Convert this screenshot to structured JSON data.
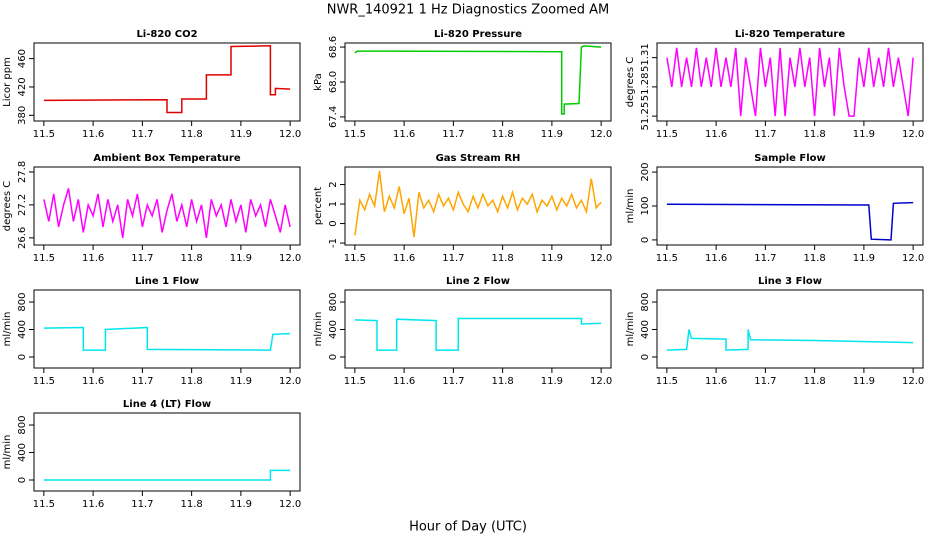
{
  "title": "NWR_140921  1 Hz Diagnostics Zoomed AM",
  "xlabel": "Hour of Day (UTC)",
  "chart_data": [
    {
      "type": "line",
      "title": "Li-820 CO2",
      "ylabel": "Licor ppm",
      "x": [
        11.5,
        11.75,
        11.75,
        11.78,
        11.78,
        11.83,
        11.83,
        11.88,
        11.88,
        11.96,
        11.96,
        11.97,
        11.97,
        12.0
      ],
      "series": [
        {
          "color": "#e00000",
          "values": [
            401,
            402,
            384,
            384,
            403,
            403,
            437,
            437,
            477,
            478,
            409,
            409,
            418,
            417
          ]
        }
      ],
      "xlim": [
        11.48,
        12.02
      ],
      "xticks": [
        11.5,
        11.6,
        11.7,
        11.8,
        11.9,
        {
          "value": 12,
          "label": "12.0"
        }
      ],
      "ylim": [
        372,
        482
      ],
      "yticks": [
        380,
        420,
        460
      ]
    },
    {
      "type": "line",
      "title": "Li-820 Pressure",
      "ylabel": "kPa",
      "x": [
        11.5,
        11.505,
        11.92,
        11.92,
        11.925,
        11.925,
        11.955,
        11.96,
        11.965,
        12.0
      ],
      "series": [
        {
          "color": "#00cc00",
          "values": [
            68.5,
            68.53,
            68.52,
            67.45,
            67.45,
            67.62,
            67.63,
            68.6,
            68.62,
            68.6
          ]
        }
      ],
      "xlim": [
        11.48,
        12.02
      ],
      "xticks": [
        11.5,
        11.6,
        11.7,
        11.8,
        11.9,
        {
          "value": 12,
          "label": "12.0"
        }
      ],
      "ylim": [
        67.33,
        68.67
      ],
      "yticks": [
        67.4,
        {
          "value": 68,
          "label": "68.0"
        },
        68.6
      ]
    },
    {
      "type": "line",
      "title": "Li-820 Temperature",
      "ylabel": "degrees C",
      "x": [
        11.5,
        11.51,
        11.52,
        11.53,
        11.54,
        11.55,
        11.56,
        11.57,
        11.58,
        11.59,
        11.6,
        11.61,
        11.62,
        11.63,
        11.64,
        11.65,
        11.66,
        11.67,
        11.68,
        11.69,
        11.7,
        11.71,
        11.72,
        11.73,
        11.74,
        11.75,
        11.76,
        11.77,
        11.78,
        11.79,
        11.8,
        11.81,
        11.82,
        11.83,
        11.84,
        11.85,
        11.86,
        11.87,
        11.88,
        11.89,
        11.9,
        11.91,
        11.92,
        11.93,
        11.94,
        11.95,
        11.96,
        11.97,
        11.98,
        11.99,
        12.0
      ],
      "series": [
        {
          "color": "#ff00ff",
          "values": [
            51.31,
            51.28,
            51.32,
            51.28,
            51.31,
            51.28,
            51.32,
            51.28,
            51.31,
            51.28,
            51.32,
            51.28,
            51.31,
            51.28,
            51.32,
            51.25,
            51.31,
            51.28,
            51.25,
            51.32,
            51.28,
            51.31,
            51.25,
            51.32,
            51.25,
            51.31,
            51.28,
            51.32,
            51.28,
            51.31,
            51.25,
            51.32,
            51.28,
            51.31,
            51.25,
            51.32,
            51.28,
            51.25,
            51.25,
            51.31,
            51.28,
            51.32,
            51.28,
            51.31,
            51.28,
            51.32,
            51.28,
            51.31,
            51.28,
            51.25,
            51.31
          ]
        }
      ],
      "xlim": [
        11.48,
        12.02
      ],
      "xticks": [
        11.5,
        11.6,
        11.7,
        11.8,
        11.9,
        {
          "value": 12,
          "label": "12.0"
        }
      ],
      "ylim": [
        51.245,
        51.325
      ],
      "yticks": [
        51.25,
        51.28,
        51.31
      ]
    },
    {
      "type": "line",
      "title": "Ambient Box Temperature",
      "ylabel": "degrees C",
      "x": [
        11.5,
        11.51,
        11.52,
        11.53,
        11.54,
        11.55,
        11.56,
        11.57,
        11.58,
        11.59,
        11.6,
        11.61,
        11.62,
        11.63,
        11.64,
        11.65,
        11.66,
        11.67,
        11.68,
        11.69,
        11.7,
        11.71,
        11.72,
        11.73,
        11.74,
        11.75,
        11.76,
        11.77,
        11.78,
        11.79,
        11.8,
        11.81,
        11.82,
        11.83,
        11.84,
        11.85,
        11.86,
        11.87,
        11.88,
        11.89,
        11.9,
        11.91,
        11.92,
        11.93,
        11.94,
        11.95,
        11.96,
        11.97,
        11.98,
        11.99,
        12.0
      ],
      "series": [
        {
          "color": "#ff00ff",
          "values": [
            27.3,
            26.9,
            27.4,
            26.8,
            27.2,
            27.5,
            26.9,
            27.3,
            26.7,
            27.2,
            27.0,
            27.4,
            26.8,
            27.3,
            26.9,
            27.2,
            26.6,
            27.3,
            27.0,
            27.4,
            26.8,
            27.2,
            27.0,
            27.3,
            26.7,
            27.1,
            27.4,
            26.9,
            27.2,
            26.8,
            27.3,
            26.9,
            27.2,
            26.6,
            27.3,
            27.0,
            27.2,
            26.8,
            27.3,
            26.9,
            27.2,
            26.7,
            27.3,
            27.0,
            27.2,
            26.8,
            27.3,
            27.0,
            26.7,
            27.2,
            26.8
          ]
        }
      ],
      "xlim": [
        11.48,
        12.02
      ],
      "xticks": [
        11.5,
        11.6,
        11.7,
        11.8,
        11.9,
        {
          "value": 12,
          "label": "12.0"
        }
      ],
      "ylim": [
        26.47,
        27.89
      ],
      "yticks": [
        26.6,
        27.2,
        27.8
      ]
    },
    {
      "type": "line",
      "title": "Gas Stream RH",
      "ylabel": "percent",
      "x": [
        11.5,
        11.51,
        11.52,
        11.53,
        11.54,
        11.55,
        11.56,
        11.57,
        11.58,
        11.59,
        11.6,
        11.61,
        11.62,
        11.63,
        11.64,
        11.65,
        11.66,
        11.67,
        11.68,
        11.69,
        11.7,
        11.71,
        11.72,
        11.73,
        11.74,
        11.75,
        11.76,
        11.77,
        11.78,
        11.79,
        11.8,
        11.81,
        11.82,
        11.83,
        11.84,
        11.85,
        11.86,
        11.87,
        11.88,
        11.89,
        11.9,
        11.91,
        11.92,
        11.93,
        11.94,
        11.95,
        11.96,
        11.97,
        11.98,
        11.99,
        12.0
      ],
      "series": [
        {
          "color": "#ffa500",
          "values": [
            -0.6,
            1.2,
            0.7,
            1.5,
            0.9,
            2.7,
            0.6,
            1.4,
            0.8,
            1.9,
            0.5,
            1.3,
            -0.7,
            1.6,
            0.8,
            1.2,
            0.6,
            1.5,
            0.9,
            1.3,
            0.7,
            1.6,
            1.0,
            0.6,
            1.4,
            0.8,
            1.5,
            0.9,
            1.2,
            0.6,
            1.4,
            0.8,
            1.6,
            0.7,
            1.3,
            1.0,
            1.5,
            0.6,
            1.2,
            0.9,
            1.4,
            0.7,
            1.3,
            0.9,
            1.5,
            0.8,
            1.2,
            0.6,
            2.3,
            0.8,
            1.1
          ]
        }
      ],
      "xlim": [
        11.48,
        12.02
      ],
      "xticks": [
        11.5,
        11.6,
        11.7,
        11.8,
        11.9,
        {
          "value": 12,
          "label": "12.0"
        }
      ],
      "ylim": [
        -1.1,
        2.9
      ],
      "yticks": [
        -1,
        0,
        1,
        2
      ]
    },
    {
      "type": "line",
      "title": "Sample Flow",
      "ylabel": "ml/min",
      "x": [
        11.5,
        11.91,
        11.915,
        11.955,
        11.96,
        12.0
      ],
      "series": [
        {
          "color": "#0000cc",
          "values": [
            105,
            103,
            2,
            0,
            108,
            110
          ]
        }
      ],
      "xlim": [
        11.48,
        12.02
      ],
      "xticks": [
        11.5,
        11.6,
        11.7,
        11.8,
        11.9,
        {
          "value": 12,
          "label": "12.0"
        }
      ],
      "ylim": [
        -15,
        215
      ],
      "yticks": [
        0,
        100,
        200
      ]
    },
    {
      "type": "line",
      "title": "Line 1 Flow",
      "ylabel": "ml/min",
      "x": [
        11.5,
        11.58,
        11.58,
        11.625,
        11.625,
        11.71,
        11.71,
        11.96,
        11.965,
        12.0
      ],
      "series": [
        {
          "color": "#00e5ee",
          "values": [
            420,
            430,
            100,
            100,
            400,
            430,
            110,
            100,
            330,
            340
          ]
        }
      ],
      "xlim": [
        11.48,
        12.02
      ],
      "xticks": [
        11.5,
        11.6,
        11.7,
        11.8,
        11.9,
        {
          "value": 12,
          "label": "12.0"
        }
      ],
      "ylim": [
        -160,
        975
      ],
      "yticks": [
        0,
        400,
        800
      ]
    },
    {
      "type": "line",
      "title": "Line 2 Flow",
      "ylabel": "ml/min",
      "x": [
        11.5,
        11.545,
        11.545,
        11.585,
        11.585,
        11.665,
        11.665,
        11.71,
        11.71,
        11.96,
        11.96,
        12.0
      ],
      "series": [
        {
          "color": "#00e5ee",
          "values": [
            540,
            530,
            100,
            100,
            550,
            530,
            100,
            100,
            560,
            560,
            480,
            490
          ]
        }
      ],
      "xlim": [
        11.48,
        12.02
      ],
      "xticks": [
        11.5,
        11.6,
        11.7,
        11.8,
        11.9,
        {
          "value": 12,
          "label": "12.0"
        }
      ],
      "ylim": [
        -160,
        975
      ],
      "yticks": [
        0,
        400,
        800
      ]
    },
    {
      "type": "line",
      "title": "Line 3 Flow",
      "ylabel": "ml/min",
      "x": [
        11.5,
        11.54,
        11.545,
        11.55,
        11.62,
        11.62,
        11.665,
        11.665,
        11.67,
        11.8,
        12.0
      ],
      "series": [
        {
          "color": "#00e5ee",
          "values": [
            100,
            110,
            400,
            270,
            260,
            100,
            110,
            400,
            250,
            240,
            210
          ]
        }
      ],
      "xlim": [
        11.48,
        12.02
      ],
      "xticks": [
        11.5,
        11.6,
        11.7,
        11.8,
        11.9,
        {
          "value": 12,
          "label": "12.0"
        }
      ],
      "ylim": [
        -160,
        975
      ],
      "yticks": [
        0,
        400,
        800
      ]
    },
    {
      "type": "line",
      "title": "Line 4 (LT) Flow",
      "ylabel": "ml/min",
      "x": [
        11.5,
        11.96,
        11.96,
        12.0
      ],
      "series": [
        {
          "color": "#00e5ee",
          "values": [
            0,
            0,
            140,
            140
          ]
        }
      ],
      "xlim": [
        11.48,
        12.02
      ],
      "xticks": [
        11.5,
        11.6,
        11.7,
        11.8,
        11.9,
        {
          "value": 12,
          "label": "12.0"
        }
      ],
      "ylim": [
        -160,
        975
      ],
      "yticks": [
        0,
        400,
        800
      ]
    }
  ]
}
